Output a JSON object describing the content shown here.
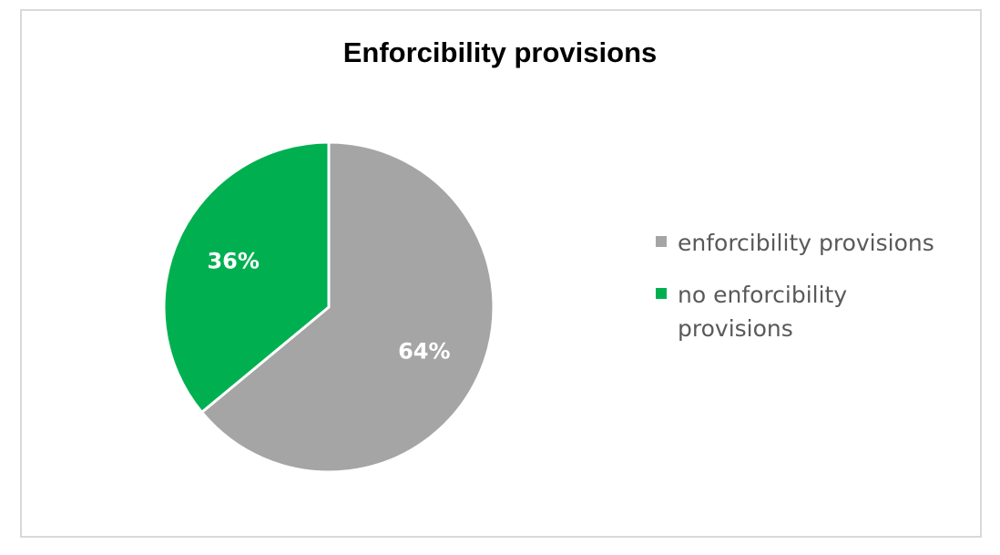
{
  "chart_data": {
    "type": "pie",
    "title": "Enforcibility provisions",
    "categories": [
      "enforcibility provisions",
      "no enforcibility provisions"
    ],
    "values": [
      64,
      36
    ],
    "data_labels": [
      "64%",
      "36%"
    ],
    "colors": [
      "#a5a5a5",
      "#00b050"
    ],
    "legend_position": "right"
  }
}
